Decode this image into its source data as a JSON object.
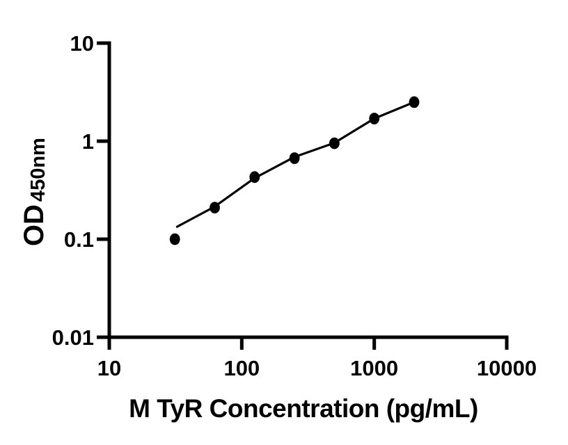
{
  "chart_data": {
    "type": "scatter",
    "title": "",
    "xlabel": "M TyR Concentration (pg/mL)",
    "ylabel_main": "OD",
    "ylabel_sub": "450nm",
    "x_scale": "log10",
    "y_scale": "log10",
    "xlim": [
      10,
      10000
    ],
    "ylim": [
      0.01,
      10
    ],
    "grid": false,
    "legend": null,
    "axis_color": "#000000",
    "marker_color": "#000000",
    "line_color": "#000000",
    "background": "#ffffff",
    "x_ticks": [
      {
        "value": 10,
        "label": "10"
      },
      {
        "value": 100,
        "label": "100"
      },
      {
        "value": 1000,
        "label": "1000"
      },
      {
        "value": 10000,
        "label": "10000"
      }
    ],
    "y_ticks": [
      {
        "value": 10,
        "label": "10"
      },
      {
        "value": 1,
        "label": "1"
      },
      {
        "value": 0.1,
        "label": "0.1"
      },
      {
        "value": 0.01,
        "label": "0.01"
      }
    ],
    "series": [
      {
        "name": "standard-points",
        "type": "scatter",
        "marker": "filled-circle",
        "color": "#000000",
        "x": [
          31.25,
          62.5,
          125,
          250,
          500,
          1000,
          2000
        ],
        "y": [
          0.1,
          0.21,
          0.43,
          0.67,
          0.95,
          1.7,
          2.5
        ]
      },
      {
        "name": "fit-curve",
        "type": "line",
        "color": "#000000",
        "x": [
          32.5,
          62.5,
          125,
          250,
          500,
          1000,
          2000
        ],
        "y": [
          0.134,
          0.215,
          0.42,
          0.69,
          0.96,
          1.7,
          2.5
        ]
      }
    ]
  }
}
